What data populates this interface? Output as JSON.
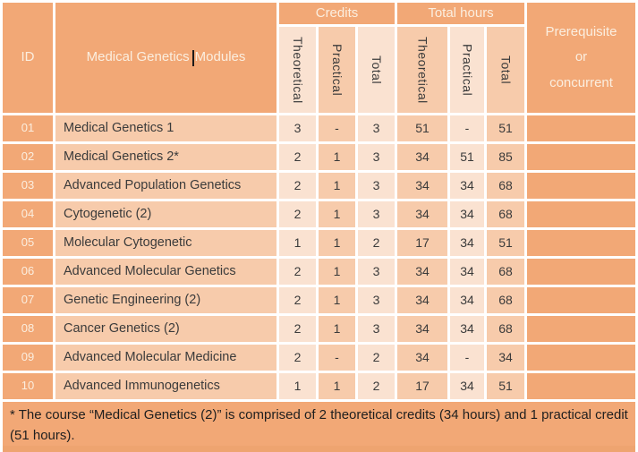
{
  "colors": {
    "orange": "#F2A876",
    "peach": "#F7CBAB",
    "cream": "#FAE2D1",
    "strip": "#EEA470",
    "dark-text": "#3B3B3B",
    "light-text": "#FBEEDF"
  },
  "table": {
    "header": {
      "id": "ID",
      "modules_title_part1": "Medical Genetics",
      "modules_title_part2": "Modules",
      "credits_group": "Credits",
      "hours_group": "Total hours",
      "prerequisite_lines": [
        "Prerequisite",
        "or",
        "concurrent"
      ],
      "sub_columns": [
        "Theoretical",
        "Practical",
        "Total",
        "Theoretical",
        "Practical",
        "Total"
      ]
    },
    "rows": [
      {
        "id": "01",
        "module": "Medical Genetics 1",
        "credits": [
          "3",
          "-",
          "3"
        ],
        "hours": [
          "51",
          "-",
          "51"
        ],
        "prereq": ""
      },
      {
        "id": "02",
        "module": "Medical Genetics 2*",
        "credits": [
          "2",
          "1",
          "3"
        ],
        "hours": [
          "34",
          "51",
          "85"
        ],
        "prereq": ""
      },
      {
        "id": "03",
        "module": "Advanced Population Genetics",
        "credits": [
          "2",
          "1",
          "3"
        ],
        "hours": [
          "34",
          "34",
          "68"
        ],
        "prereq": ""
      },
      {
        "id": "04",
        "module": "Cytogenetic (2)",
        "credits": [
          "2",
          "1",
          "3"
        ],
        "hours": [
          "34",
          "34",
          "68"
        ],
        "prereq": ""
      },
      {
        "id": "05",
        "module": "Molecular Cytogenetic",
        "credits": [
          "1",
          "1",
          "2"
        ],
        "hours": [
          "17",
          "34",
          "51"
        ],
        "prereq": ""
      },
      {
        "id": "06",
        "module": "Advanced Molecular Genetics",
        "credits": [
          "2",
          "1",
          "3"
        ],
        "hours": [
          "34",
          "34",
          "68"
        ],
        "prereq": ""
      },
      {
        "id": "07",
        "module": "Genetic Engineering (2)",
        "credits": [
          "2",
          "1",
          "3"
        ],
        "hours": [
          "34",
          "34",
          "68"
        ],
        "prereq": ""
      },
      {
        "id": "08",
        "module": "Cancer Genetics (2)",
        "credits": [
          "2",
          "1",
          "3"
        ],
        "hours": [
          "34",
          "34",
          "68"
        ],
        "prereq": ""
      },
      {
        "id": "09",
        "module": "Advanced Molecular Medicine",
        "credits": [
          "2",
          "-",
          "2"
        ],
        "hours": [
          "34",
          "-",
          "34"
        ],
        "prereq": ""
      },
      {
        "id": "10",
        "module": "Advanced Immunogenetics",
        "credits": [
          "1",
          "1",
          "2"
        ],
        "hours": [
          "17",
          "34",
          "51"
        ],
        "prereq": ""
      }
    ],
    "footnote": "* The course “Medical Genetics (2)” is comprised of 2 theoretical credits (34 hours) and 1 practical credit (51 hours)."
  }
}
